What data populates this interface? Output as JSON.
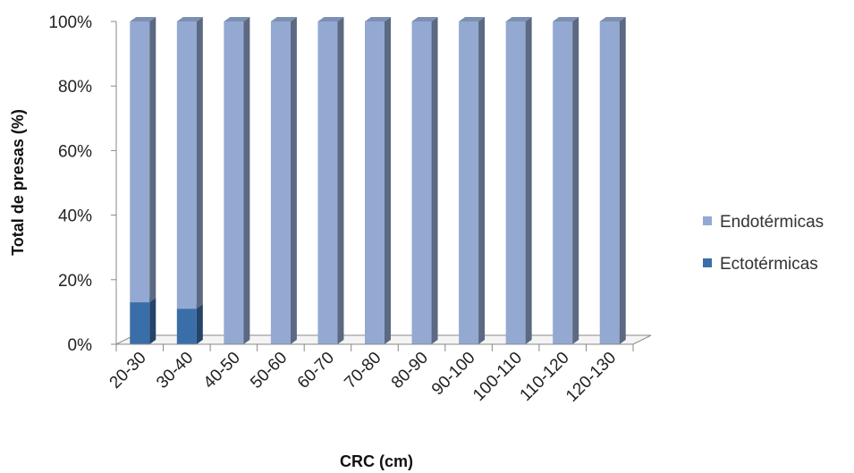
{
  "chart_data": {
    "type": "bar",
    "stacked": true,
    "percent_stacked": true,
    "three_d": true,
    "title": "",
    "xlabel": "CRC (cm)",
    "ylabel": "Total de presas (%)",
    "categories": [
      "20-30",
      "30-40",
      "40-50",
      "50-60",
      "60-70",
      "70-80",
      "80-90",
      "90-100",
      "100-110",
      "110-120",
      "120-130"
    ],
    "series": [
      {
        "name": "Ectotérmicas",
        "color": "#3a6ea8",
        "values": [
          13,
          11,
          0,
          0,
          0,
          0,
          0,
          0,
          0,
          0,
          0
        ]
      },
      {
        "name": "Endotérmicas",
        "color": "#93a9d1",
        "values": [
          87,
          89,
          100,
          100,
          100,
          100,
          100,
          100,
          100,
          100,
          100
        ]
      }
    ],
    "ylim": [
      0,
      100
    ],
    "yticks": [
      "0%",
      "20%",
      "40%",
      "60%",
      "80%",
      "100%"
    ],
    "grid": false,
    "legend": {
      "position": "right",
      "entries": [
        "Endotérmicas",
        "Ectotérmicas"
      ]
    }
  }
}
